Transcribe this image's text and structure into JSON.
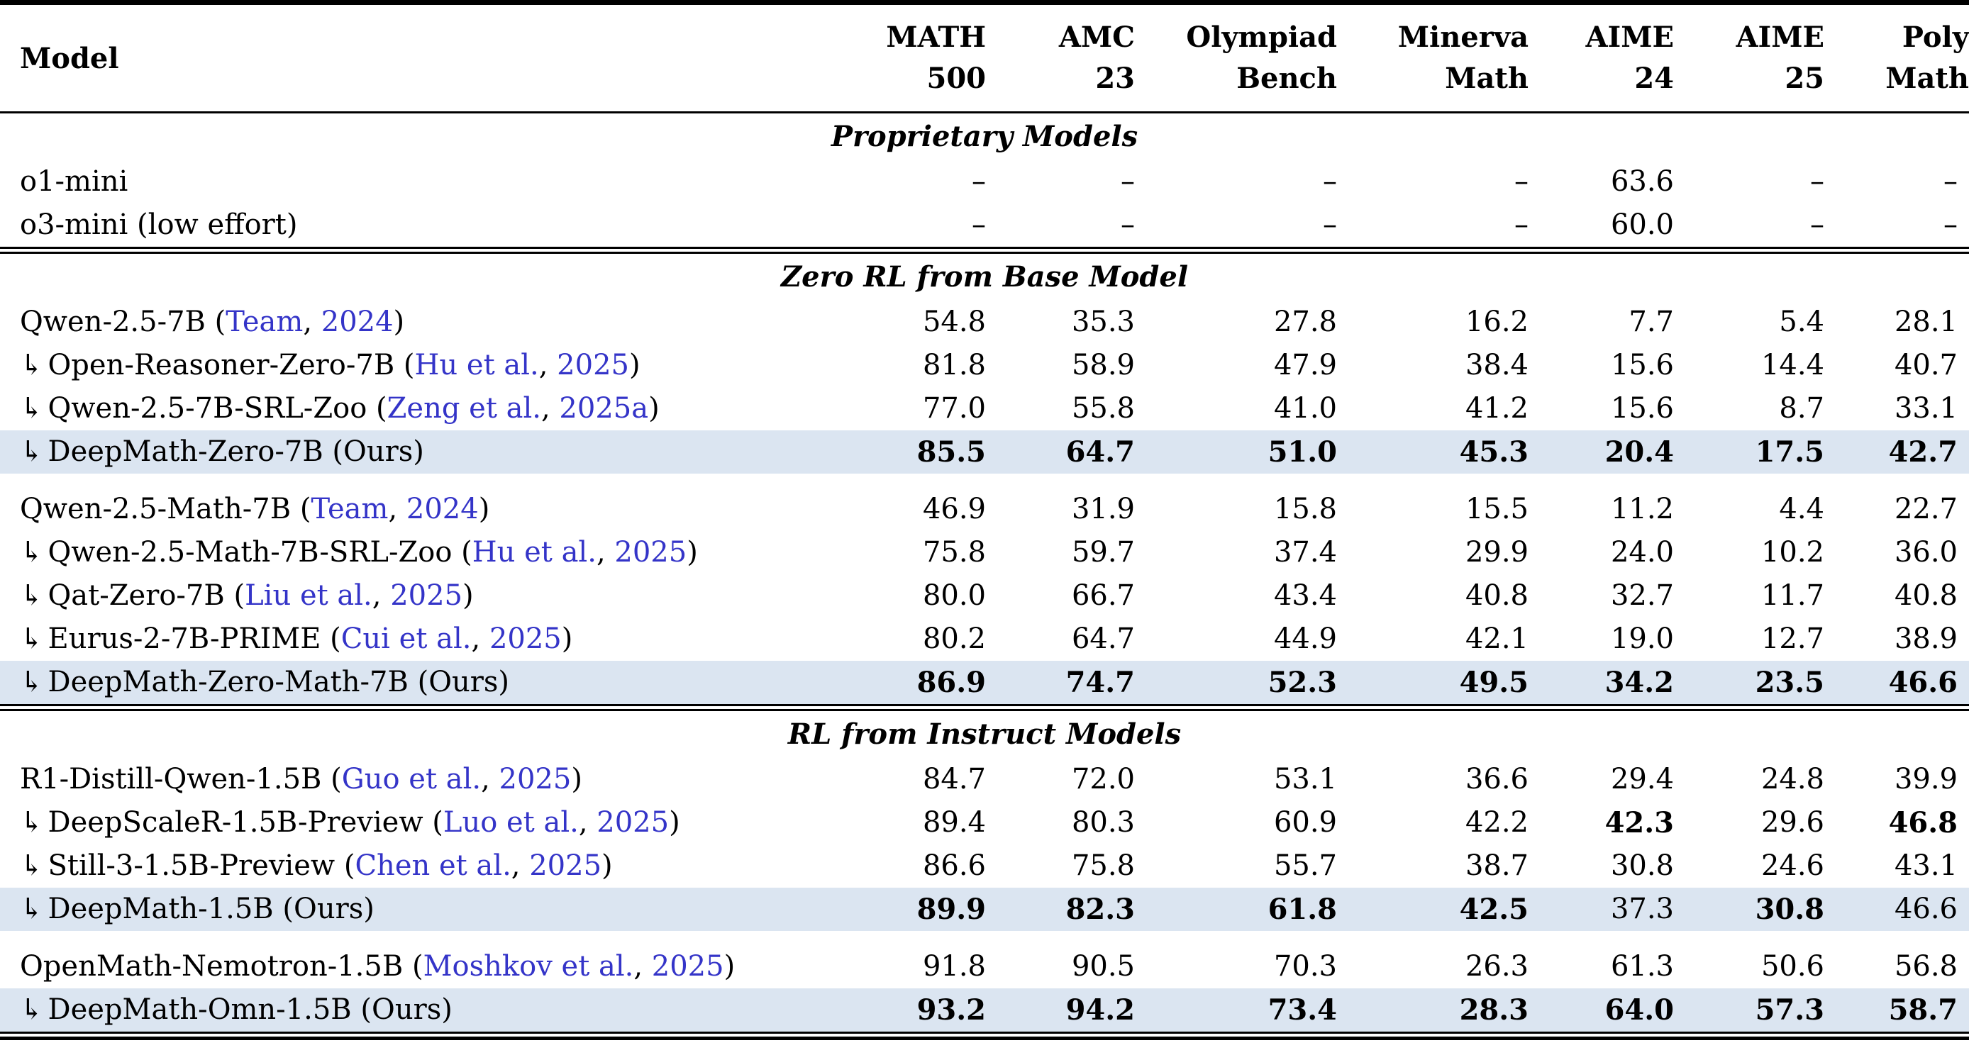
{
  "table": {
    "arrow_glyph": "↳",
    "dash_glyph": "–",
    "colors": {
      "citation": "#3434c8",
      "highlight": "#dbe5f1",
      "rule": "#000000"
    },
    "columns": [
      {
        "line1": "Model",
        "line2": ""
      },
      {
        "line1": "MATH",
        "line2": "500"
      },
      {
        "line1": "AMC",
        "line2": "23"
      },
      {
        "line1": "Olympiad",
        "line2": "Bench"
      },
      {
        "line1": "Minerva",
        "line2": "Math"
      },
      {
        "line1": "AIME",
        "line2": "24"
      },
      {
        "line1": "AIME",
        "line2": "25"
      },
      {
        "line1": "Poly",
        "line2": "Math"
      }
    ],
    "sections": [
      {
        "title": "Proprietary Models",
        "groups": [
          {
            "rows": [
              {
                "arrow": false,
                "name": "o1-mini",
                "cite": null,
                "note": null,
                "highlight": false,
                "values": [
                  "–",
                  "–",
                  "–",
                  "–",
                  "63.6",
                  "–",
                  "–"
                ],
                "bold": [
                  false,
                  false,
                  false,
                  false,
                  false,
                  false,
                  false
                ]
              },
              {
                "arrow": false,
                "name": "o3-mini (low effort)",
                "cite": null,
                "note": null,
                "highlight": false,
                "values": [
                  "–",
                  "–",
                  "–",
                  "–",
                  "60.0",
                  "–",
                  "–"
                ],
                "bold": [
                  false,
                  false,
                  false,
                  false,
                  false,
                  false,
                  false
                ]
              }
            ]
          }
        ]
      },
      {
        "title": "Zero RL from Base Model",
        "groups": [
          {
            "rows": [
              {
                "arrow": false,
                "name": "Qwen-2.5-7B",
                "cite": {
                  "author": "Team",
                  "year": "2024"
                },
                "note": null,
                "highlight": false,
                "values": [
                  "54.8",
                  "35.3",
                  "27.8",
                  "16.2",
                  "7.7",
                  "5.4",
                  "28.1"
                ],
                "bold": [
                  false,
                  false,
                  false,
                  false,
                  false,
                  false,
                  false
                ]
              },
              {
                "arrow": true,
                "name": "Open-Reasoner-Zero-7B",
                "cite": {
                  "author": "Hu et al.",
                  "year": "2025"
                },
                "note": null,
                "highlight": false,
                "values": [
                  "81.8",
                  "58.9",
                  "47.9",
                  "38.4",
                  "15.6",
                  "14.4",
                  "40.7"
                ],
                "bold": [
                  false,
                  false,
                  false,
                  false,
                  false,
                  false,
                  false
                ]
              },
              {
                "arrow": true,
                "name": "Qwen-2.5-7B-SRL-Zoo",
                "cite": {
                  "author": "Zeng et al.",
                  "year": "2025a"
                },
                "note": null,
                "highlight": false,
                "values": [
                  "77.0",
                  "55.8",
                  "41.0",
                  "41.2",
                  "15.6",
                  "8.7",
                  "33.1"
                ],
                "bold": [
                  false,
                  false,
                  false,
                  false,
                  false,
                  false,
                  false
                ]
              },
              {
                "arrow": true,
                "name": "DeepMath-Zero-7B",
                "cite": null,
                "note": "(Ours)",
                "highlight": true,
                "values": [
                  "85.5",
                  "64.7",
                  "51.0",
                  "45.3",
                  "20.4",
                  "17.5",
                  "42.7"
                ],
                "bold": [
                  true,
                  true,
                  true,
                  true,
                  true,
                  true,
                  true
                ]
              }
            ]
          },
          {
            "rows": [
              {
                "arrow": false,
                "name": "Qwen-2.5-Math-7B",
                "cite": {
                  "author": "Team",
                  "year": "2024"
                },
                "note": null,
                "highlight": false,
                "values": [
                  "46.9",
                  "31.9",
                  "15.8",
                  "15.5",
                  "11.2",
                  "4.4",
                  "22.7"
                ],
                "bold": [
                  false,
                  false,
                  false,
                  false,
                  false,
                  false,
                  false
                ]
              },
              {
                "arrow": true,
                "name": "Qwen-2.5-Math-7B-SRL-Zoo",
                "cite": {
                  "author": "Hu et al.",
                  "year": "2025"
                },
                "note": null,
                "highlight": false,
                "values": [
                  "75.8",
                  "59.7",
                  "37.4",
                  "29.9",
                  "24.0",
                  "10.2",
                  "36.0"
                ],
                "bold": [
                  false,
                  false,
                  false,
                  false,
                  false,
                  false,
                  false
                ]
              },
              {
                "arrow": true,
                "name": "Qat-Zero-7B",
                "cite": {
                  "author": "Liu et al.",
                  "year": "2025"
                },
                "note": null,
                "highlight": false,
                "values": [
                  "80.0",
                  "66.7",
                  "43.4",
                  "40.8",
                  "32.7",
                  "11.7",
                  "40.8"
                ],
                "bold": [
                  false,
                  false,
                  false,
                  false,
                  false,
                  false,
                  false
                ]
              },
              {
                "arrow": true,
                "name": "Eurus-2-7B-PRIME",
                "cite": {
                  "author": "Cui et al.",
                  "year": "2025"
                },
                "note": null,
                "highlight": false,
                "values": [
                  "80.2",
                  "64.7",
                  "44.9",
                  "42.1",
                  "19.0",
                  "12.7",
                  "38.9"
                ],
                "bold": [
                  false,
                  false,
                  false,
                  false,
                  false,
                  false,
                  false
                ]
              },
              {
                "arrow": true,
                "name": "DeepMath-Zero-Math-7B",
                "cite": null,
                "note": "(Ours)",
                "highlight": true,
                "values": [
                  "86.9",
                  "74.7",
                  "52.3",
                  "49.5",
                  "34.2",
                  "23.5",
                  "46.6"
                ],
                "bold": [
                  true,
                  true,
                  true,
                  true,
                  true,
                  true,
                  true
                ]
              }
            ]
          }
        ]
      },
      {
        "title": "RL from Instruct Models",
        "groups": [
          {
            "rows": [
              {
                "arrow": false,
                "name": "R1-Distill-Qwen-1.5B",
                "cite": {
                  "author": "Guo et al.",
                  "year": "2025"
                },
                "note": null,
                "highlight": false,
                "values": [
                  "84.7",
                  "72.0",
                  "53.1",
                  "36.6",
                  "29.4",
                  "24.8",
                  "39.9"
                ],
                "bold": [
                  false,
                  false,
                  false,
                  false,
                  false,
                  false,
                  false
                ]
              },
              {
                "arrow": true,
                "name": "DeepScaleR-1.5B-Preview",
                "cite": {
                  "author": "Luo et al.",
                  "year": "2025"
                },
                "note": null,
                "highlight": false,
                "values": [
                  "89.4",
                  "80.3",
                  "60.9",
                  "42.2",
                  "42.3",
                  "29.6",
                  "46.8"
                ],
                "bold": [
                  false,
                  false,
                  false,
                  false,
                  true,
                  false,
                  true
                ]
              },
              {
                "arrow": true,
                "name": "Still-3-1.5B-Preview",
                "cite": {
                  "author": "Chen et al.",
                  "year": "2025"
                },
                "note": null,
                "highlight": false,
                "values": [
                  "86.6",
                  "75.8",
                  "55.7",
                  "38.7",
                  "30.8",
                  "24.6",
                  "43.1"
                ],
                "bold": [
                  false,
                  false,
                  false,
                  false,
                  false,
                  false,
                  false
                ]
              },
              {
                "arrow": true,
                "name": "DeepMath-1.5B",
                "cite": null,
                "note": "(Ours)",
                "highlight": true,
                "values": [
                  "89.9",
                  "82.3",
                  "61.8",
                  "42.5",
                  "37.3",
                  "30.8",
                  "46.6"
                ],
                "bold": [
                  true,
                  true,
                  true,
                  true,
                  false,
                  true,
                  false
                ]
              }
            ]
          },
          {
            "rows": [
              {
                "arrow": false,
                "name": "OpenMath-Nemotron-1.5B",
                "cite": {
                  "author": "Moshkov et al.",
                  "year": "2025"
                },
                "note": null,
                "highlight": false,
                "values": [
                  "91.8",
                  "90.5",
                  "70.3",
                  "26.3",
                  "61.3",
                  "50.6",
                  "56.8"
                ],
                "bold": [
                  false,
                  false,
                  false,
                  false,
                  false,
                  false,
                  false
                ]
              },
              {
                "arrow": true,
                "name": "DeepMath-Omn-1.5B",
                "cite": null,
                "note": "(Ours)",
                "highlight": true,
                "values": [
                  "93.2",
                  "94.2",
                  "73.4",
                  "28.3",
                  "64.0",
                  "57.3",
                  "58.7"
                ],
                "bold": [
                  true,
                  true,
                  true,
                  true,
                  true,
                  true,
                  true
                ]
              }
            ]
          }
        ]
      }
    ]
  }
}
